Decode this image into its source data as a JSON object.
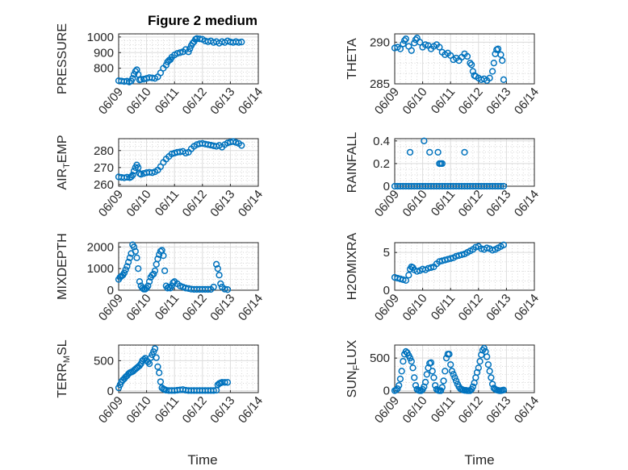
{
  "figure": {
    "title": "Figure 2 medium",
    "xlabel": "Time",
    "marker_color": "#0072BD"
  },
  "chart_data": [
    {
      "type": "scatter",
      "id": "pressure",
      "title": "Figure 2 medium",
      "ylabel_parts": [
        {
          "t": "PRESSURE"
        }
      ],
      "ylim": [
        700,
        1020
      ],
      "yticks": [
        800,
        900,
        1000
      ],
      "xlim": [
        0,
        5
      ],
      "xticks": [
        "06/09",
        "06/10",
        "06/11",
        "06/12",
        "06/13",
        "06/14"
      ],
      "xlabel": "",
      "grid": true,
      "x": [
        0.0,
        0.1,
        0.2,
        0.3,
        0.38,
        0.45,
        0.5,
        0.55,
        0.6,
        0.65,
        0.7,
        0.75,
        0.8,
        0.9,
        1.0,
        1.1,
        1.2,
        1.3,
        1.4,
        1.5,
        1.6,
        1.7,
        1.75,
        1.8,
        1.85,
        1.9,
        2.0,
        2.1,
        2.2,
        2.3,
        2.4,
        2.5,
        2.55,
        2.6,
        2.65,
        2.7,
        2.75,
        2.8,
        2.9,
        3.0,
        3.1,
        3.2,
        3.3,
        3.4,
        3.5,
        3.6,
        3.7,
        3.8,
        3.9,
        4.0,
        4.1,
        4.2,
        4.3,
        4.4
      ],
      "y": [
        720,
        718,
        715,
        717,
        712,
        718,
        735,
        760,
        780,
        790,
        760,
        725,
        728,
        730,
        735,
        740,
        738,
        735,
        745,
        770,
        800,
        820,
        840,
        850,
        855,
        870,
        885,
        895,
        900,
        905,
        920,
        905,
        925,
        945,
        960,
        970,
        985,
        990,
        988,
        985,
        975,
        970,
        975,
        965,
        970,
        960,
        970,
        965,
        975,
        968,
        965,
        970,
        965,
        968
      ]
    },
    {
      "type": "scatter",
      "id": "theta",
      "title": "",
      "ylabel_parts": [
        {
          "t": "THETA"
        }
      ],
      "ylim": [
        285,
        291
      ],
      "yticks": [
        285,
        290
      ],
      "xlim": [
        0,
        5
      ],
      "xticks": [
        "06/09",
        "06/10",
        "06/11",
        "06/12",
        "06/13",
        "06/14"
      ],
      "xlabel": "",
      "grid": true,
      "x": [
        0.0,
        0.1,
        0.2,
        0.3,
        0.35,
        0.4,
        0.5,
        0.6,
        0.7,
        0.75,
        0.8,
        0.9,
        1.0,
        1.1,
        1.2,
        1.3,
        1.4,
        1.5,
        1.6,
        1.7,
        1.8,
        1.9,
        2.0,
        2.1,
        2.2,
        2.3,
        2.4,
        2.5,
        2.6,
        2.7,
        2.75,
        2.8,
        2.85,
        2.9,
        3.0,
        3.1,
        3.2,
        3.3,
        3.4,
        3.5,
        3.55,
        3.6,
        3.65,
        3.7,
        3.8,
        3.85,
        3.9
      ],
      "y": [
        289.3,
        289.4,
        289.2,
        289.8,
        290.2,
        290.4,
        289.5,
        289.0,
        289.9,
        290.3,
        290.5,
        290.0,
        289.4,
        289.7,
        289.6,
        289.2,
        289.5,
        289.7,
        289.4,
        288.8,
        288.5,
        288.7,
        288.4,
        287.9,
        288.1,
        287.8,
        288.2,
        288.6,
        288.3,
        287.5,
        287.3,
        286.5,
        286.0,
        285.9,
        285.7,
        285.5,
        285.6,
        285.4,
        285.7,
        286.5,
        287.5,
        288.6,
        289.1,
        289.2,
        288.5,
        287.8,
        285.5
      ]
    },
    {
      "type": "scatter",
      "id": "air_temp",
      "title": "",
      "ylabel_parts": [
        {
          "t": "AIR"
        },
        {
          "t": "T",
          "sub": true
        },
        {
          "t": "EMP"
        }
      ],
      "ylim": [
        259,
        287
      ],
      "yticks": [
        260,
        270,
        280
      ],
      "xlim": [
        0,
        5
      ],
      "xticks": [
        "06/09",
        "06/10",
        "06/11",
        "06/12",
        "06/13",
        "06/14"
      ],
      "xlabel": "",
      "grid": true,
      "x": [
        0.0,
        0.1,
        0.2,
        0.3,
        0.4,
        0.45,
        0.5,
        0.55,
        0.6,
        0.65,
        0.7,
        0.75,
        0.8,
        0.9,
        1.0,
        1.1,
        1.2,
        1.3,
        1.4,
        1.5,
        1.6,
        1.7,
        1.8,
        1.9,
        2.0,
        2.1,
        2.2,
        2.3,
        2.4,
        2.5,
        2.6,
        2.7,
        2.8,
        2.9,
        3.0,
        3.1,
        3.2,
        3.3,
        3.4,
        3.5,
        3.6,
        3.7,
        3.8,
        3.9,
        4.0,
        4.1,
        4.2,
        4.3,
        4.4
      ],
      "y": [
        264.5,
        264.2,
        264.0,
        264.3,
        264.1,
        264.6,
        265.5,
        268,
        270,
        271.5,
        270,
        266.5,
        266,
        266.5,
        267,
        267.2,
        267,
        267.5,
        268.5,
        270.5,
        273,
        275,
        276.5,
        278,
        278.5,
        279,
        279.2,
        279.5,
        278.5,
        279,
        281,
        282.5,
        283.5,
        284,
        284.2,
        283.8,
        283.5,
        283.2,
        282.8,
        282.5,
        283,
        282,
        283.5,
        284.5,
        285,
        285.3,
        284.8,
        284.2,
        283
      ]
    },
    {
      "type": "scatter",
      "id": "rainfall",
      "title": "",
      "ylabel_parts": [
        {
          "t": "RAINFALL"
        }
      ],
      "ylim": [
        0,
        0.42
      ],
      "yticks": [
        0,
        0.2,
        0.4
      ],
      "xlim": [
        0,
        5
      ],
      "xticks": [
        "06/09",
        "06/10",
        "06/11",
        "06/12",
        "06/13",
        "06/14"
      ],
      "xlabel": "",
      "grid": true,
      "x": [
        0.0,
        0.1,
        0.2,
        0.3,
        0.4,
        0.5,
        0.6,
        0.7,
        0.8,
        0.9,
        1.0,
        1.1,
        1.2,
        1.3,
        1.4,
        1.5,
        1.6,
        1.7,
        1.8,
        1.9,
        2.0,
        2.1,
        2.2,
        2.3,
        2.4,
        2.5,
        2.6,
        2.7,
        2.8,
        2.9,
        3.0,
        3.1,
        3.2,
        3.3,
        3.4,
        3.5,
        3.6,
        3.7,
        3.8,
        3.9,
        0.55,
        1.05,
        1.25,
        1.55,
        1.6,
        1.65,
        1.7,
        2.5
      ],
      "y": [
        0,
        0,
        0,
        0,
        0,
        0,
        0,
        0,
        0,
        0,
        0,
        0,
        0,
        0,
        0,
        0,
        0,
        0,
        0,
        0,
        0,
        0,
        0,
        0,
        0,
        0,
        0,
        0,
        0,
        0,
        0,
        0,
        0,
        0,
        0,
        0,
        0,
        0,
        0,
        0,
        0.3,
        0.4,
        0.3,
        0.3,
        0.2,
        0.2,
        0.2,
        0.3
      ]
    },
    {
      "type": "scatter",
      "id": "mixdepth",
      "title": "",
      "ylabel_parts": [
        {
          "t": "MIXDEPTH"
        }
      ],
      "ylim": [
        0,
        2200
      ],
      "yticks": [
        0,
        1000,
        2000
      ],
      "xlim": [
        0,
        5
      ],
      "xticks": [
        "06/09",
        "06/10",
        "06/11",
        "06/12",
        "06/13",
        "06/14"
      ],
      "xlabel": "",
      "grid": true,
      "x": [
        0.0,
        0.05,
        0.1,
        0.15,
        0.2,
        0.25,
        0.3,
        0.35,
        0.4,
        0.45,
        0.5,
        0.55,
        0.6,
        0.65,
        0.7,
        0.75,
        0.8,
        0.85,
        0.9,
        0.95,
        1.0,
        1.05,
        1.1,
        1.15,
        1.2,
        1.25,
        1.3,
        1.35,
        1.4,
        1.45,
        1.5,
        1.55,
        1.6,
        1.65,
        1.7,
        1.75,
        1.8,
        1.85,
        1.9,
        1.95,
        2.0,
        2.1,
        2.2,
        2.3,
        2.4,
        2.5,
        2.6,
        2.7,
        2.8,
        2.9,
        3.0,
        3.1,
        3.2,
        3.3,
        3.4,
        3.5,
        3.55,
        3.6,
        3.65,
        3.7,
        3.8,
        3.9
      ],
      "y": [
        500,
        600,
        650,
        700,
        800,
        950,
        1100,
        1300,
        1500,
        1700,
        2100,
        2000,
        1800,
        1500,
        1000,
        400,
        200,
        100,
        50,
        50,
        100,
        200,
        400,
        600,
        700,
        750,
        900,
        1200,
        1450,
        1650,
        1800,
        1850,
        1600,
        900,
        200,
        100,
        150,
        100,
        200,
        350,
        400,
        300,
        200,
        150,
        100,
        80,
        50,
        40,
        40,
        40,
        40,
        40,
        40,
        40,
        150,
        1200,
        1000,
        700,
        300,
        150,
        50,
        30
      ]
    },
    {
      "type": "scatter",
      "id": "h2omixra",
      "title": "",
      "ylabel_parts": [
        {
          "t": "H2OMIXRA"
        }
      ],
      "ylim": [
        0,
        6.3
      ],
      "yticks": [
        0,
        5
      ],
      "xlim": [
        0,
        5
      ],
      "xticks": [
        "06/09",
        "06/10",
        "06/11",
        "06/12",
        "06/13",
        "06/14"
      ],
      "xlabel": "",
      "grid": true,
      "x": [
        0.0,
        0.1,
        0.2,
        0.3,
        0.4,
        0.5,
        0.55,
        0.6,
        0.65,
        0.7,
        0.8,
        0.9,
        1.0,
        1.1,
        1.2,
        1.3,
        1.4,
        1.5,
        1.6,
        1.7,
        1.8,
        1.9,
        2.0,
        2.1,
        2.2,
        2.3,
        2.4,
        2.5,
        2.6,
        2.7,
        2.8,
        2.9,
        3.0,
        3.1,
        3.2,
        3.3,
        3.4,
        3.5,
        3.6,
        3.7,
        3.8,
        3.9
      ],
      "y": [
        1.7,
        1.6,
        1.5,
        1.4,
        1.3,
        2.0,
        2.8,
        3.1,
        3.0,
        2.7,
        2.5,
        2.6,
        2.8,
        2.7,
        2.9,
        3.0,
        3.1,
        3.5,
        3.8,
        3.9,
        4.0,
        4.1,
        4.2,
        4.3,
        4.5,
        4.6,
        4.7,
        4.8,
        5.0,
        5.2,
        5.4,
        5.7,
        5.8,
        5.5,
        5.4,
        5.6,
        5.5,
        5.3,
        5.4,
        5.6,
        5.8,
        6.0
      ]
    },
    {
      "type": "scatter",
      "id": "terr_msl",
      "title": "",
      "ylabel_parts": [
        {
          "t": "TERR"
        },
        {
          "t": "M",
          "sub": true
        },
        {
          "t": "SL"
        }
      ],
      "ylim": [
        -30,
        760
      ],
      "yticks": [
        0,
        500
      ],
      "xlim": [
        0,
        5
      ],
      "xticks": [
        "06/09",
        "06/10",
        "06/11",
        "06/12",
        "06/13",
        "06/14"
      ],
      "xlabel": "Time",
      "grid": true,
      "x": [
        0.0,
        0.05,
        0.1,
        0.15,
        0.2,
        0.25,
        0.3,
        0.35,
        0.4,
        0.45,
        0.5,
        0.55,
        0.6,
        0.65,
        0.7,
        0.75,
        0.8,
        0.85,
        0.9,
        0.95,
        1.0,
        1.05,
        1.1,
        1.15,
        1.2,
        1.25,
        1.3,
        1.35,
        1.4,
        1.45,
        1.5,
        1.55,
        1.6,
        1.65,
        1.7,
        1.8,
        1.9,
        2.0,
        2.1,
        2.2,
        2.3,
        2.4,
        2.5,
        2.6,
        2.7,
        2.8,
        2.9,
        3.0,
        3.1,
        3.2,
        3.3,
        3.4,
        3.5,
        3.55,
        3.6,
        3.65,
        3.7,
        3.8,
        3.9
      ],
      "y": [
        50,
        100,
        150,
        180,
        200,
        230,
        250,
        280,
        300,
        310,
        320,
        340,
        360,
        380,
        400,
        420,
        450,
        500,
        520,
        540,
        500,
        480,
        450,
        550,
        600,
        650,
        700,
        550,
        400,
        300,
        150,
        50,
        30,
        20,
        10,
        5,
        5,
        5,
        10,
        15,
        20,
        10,
        5,
        5,
        5,
        5,
        5,
        5,
        5,
        5,
        5,
        5,
        10,
        100,
        120,
        130,
        140,
        140,
        140
      ]
    },
    {
      "type": "scatter",
      "id": "sun_flux",
      "title": "",
      "ylabel_parts": [
        {
          "t": "SUN"
        },
        {
          "t": "F",
          "sub": true
        },
        {
          "t": "LUX"
        }
      ],
      "ylim": [
        -30,
        700
      ],
      "yticks": [
        0,
        500
      ],
      "xlim": [
        0,
        5
      ],
      "xticks": [
        "06/09",
        "06/10",
        "06/11",
        "06/12",
        "06/13",
        "06/14"
      ],
      "xlabel": "Time",
      "grid": true,
      "x": [
        0.0,
        0.05,
        0.1,
        0.15,
        0.2,
        0.25,
        0.3,
        0.35,
        0.4,
        0.45,
        0.5,
        0.55,
        0.6,
        0.65,
        0.7,
        0.75,
        0.8,
        0.85,
        0.9,
        0.95,
        1.0,
        1.05,
        1.1,
        1.15,
        1.2,
        1.25,
        1.3,
        1.35,
        1.4,
        1.45,
        1.5,
        1.55,
        1.6,
        1.65,
        1.7,
        1.75,
        1.8,
        1.85,
        1.9,
        1.95,
        2.0,
        2.05,
        2.1,
        2.15,
        2.2,
        2.25,
        2.3,
        2.35,
        2.4,
        2.45,
        2.5,
        2.55,
        2.6,
        2.65,
        2.7,
        2.75,
        2.8,
        2.85,
        2.9,
        2.95,
        3.0,
        3.05,
        3.1,
        3.15,
        3.2,
        3.25,
        3.3,
        3.35,
        3.4,
        3.45,
        3.5,
        3.55,
        3.6,
        3.65,
        3.7,
        3.75,
        3.8,
        3.85,
        3.9
      ],
      "y": [
        0,
        10,
        30,
        80,
        180,
        300,
        450,
        560,
        600,
        580,
        540,
        500,
        450,
        350,
        200,
        80,
        20,
        5,
        0,
        0,
        20,
        60,
        130,
        250,
        350,
        420,
        430,
        300,
        200,
        80,
        20,
        5,
        0,
        0,
        50,
        150,
        300,
        500,
        560,
        560,
        400,
        300,
        250,
        200,
        150,
        100,
        60,
        30,
        20,
        10,
        5,
        5,
        0,
        0,
        0,
        20,
        60,
        120,
        200,
        280,
        350,
        450,
        550,
        620,
        650,
        600,
        520,
        400,
        300,
        200,
        100,
        40,
        20,
        10,
        5,
        0,
        0,
        5,
        10
      ]
    }
  ]
}
